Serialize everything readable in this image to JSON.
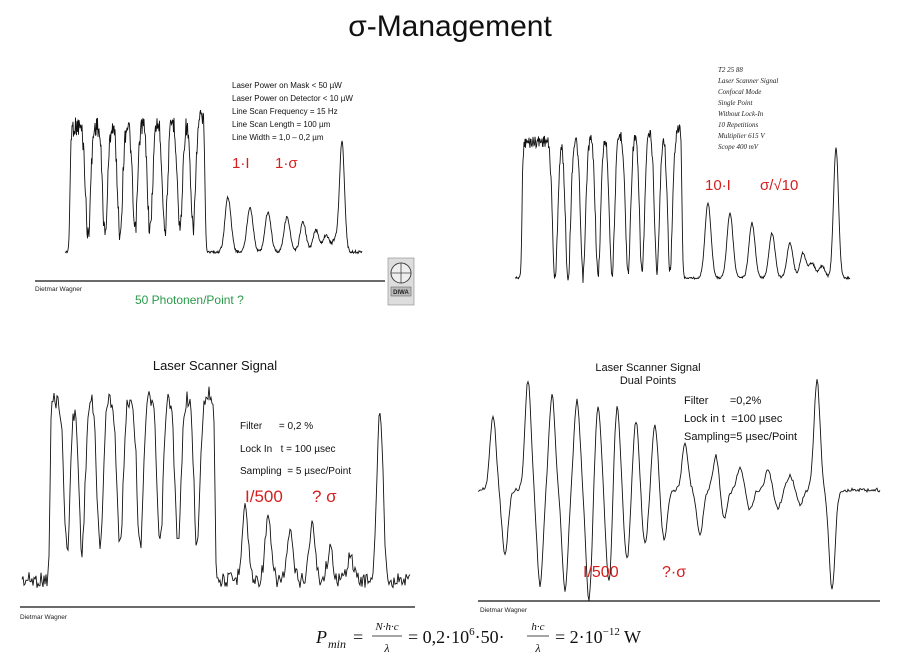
{
  "title": "σ-Management",
  "panels": [
    {
      "notes": [
        "Laser Power on Mask < 50 µW",
        "Laser Power on Detector < 10 µW",
        "Line Scan Frequency = 15 Hz",
        "Line Scan Length = 100 µm",
        "Line Width = 1,0 – 0,2 µm"
      ],
      "labels": [
        "1·I",
        "1·σ"
      ],
      "author": "Dietmar Wagner",
      "caption": "50 Photonen/Point ?",
      "logo": "DIWA"
    },
    {
      "notes": [
        "T2 25 88",
        "Laser Scanner Signal",
        "Confocal Mode",
        "Single Point",
        "Without Lock-In",
        "10 Repetitions",
        "Multiplier 615 V",
        "Scope 400 mV"
      ],
      "labels": [
        "10·I",
        "σ/√10"
      ]
    },
    {
      "title": [
        "Laser Scanner Signal"
      ],
      "notes": [
        "Filter      = 0,2 %",
        "Lock In   t = 100 µsec",
        "Sampling  = 5 µsec/Point"
      ],
      "labels": [
        "I/500",
        "? σ"
      ],
      "author": "Dietmar Wagner"
    },
    {
      "title": [
        "Laser Scanner Signal",
        "Dual Points"
      ],
      "notes": [
        "Filter       =0,2%",
        "Lock in t  =100 µsec",
        "Sampling=5 µsec/Point"
      ],
      "labels": [
        "I/500",
        "?·σ"
      ],
      "author": "Dietmar Wagner"
    }
  ],
  "formula": {
    "p": "P",
    "sub": "min",
    "eq1": "=",
    "num1": "N·h·c",
    "den1": "λ",
    "mid": "= 0,2·10",
    "exp1": "6",
    "mult": "·50·",
    "num2": "h·c",
    "den2": "λ",
    "eq2": "= 2·10",
    "exp2": "−12",
    "unit": " W"
  }
}
